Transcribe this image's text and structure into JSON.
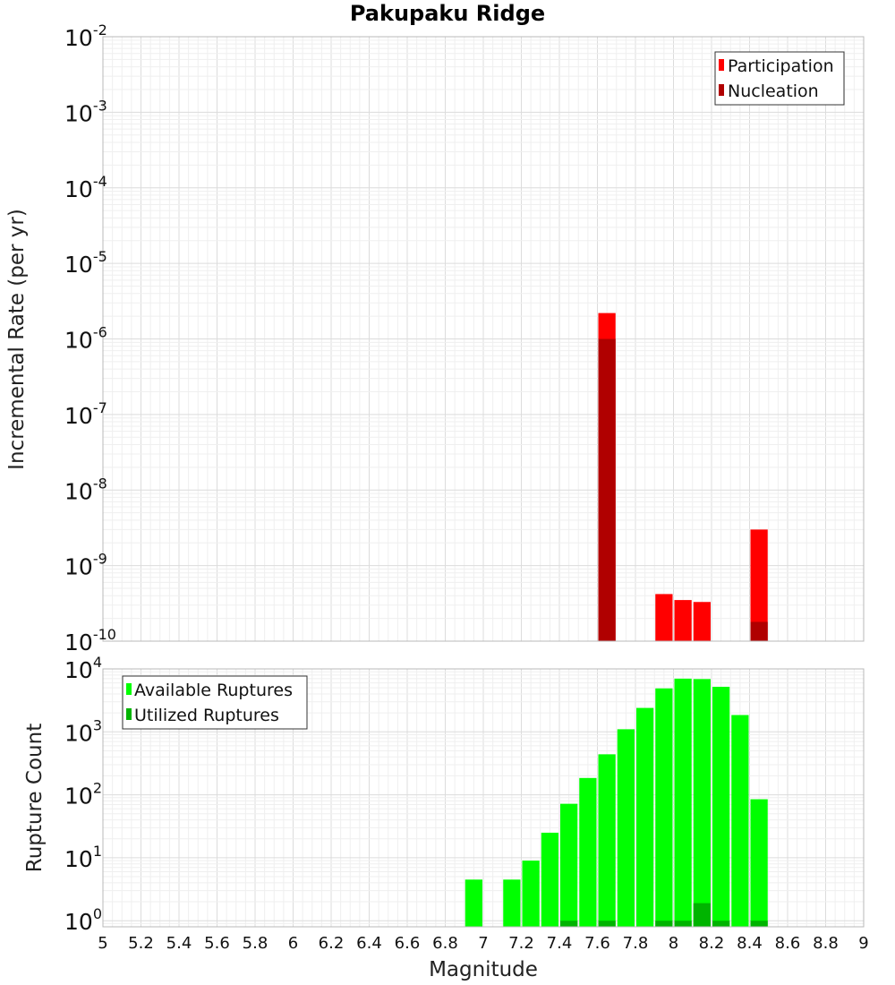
{
  "chart_data": [
    {
      "type": "bar",
      "title": "Pakupaku Ridge",
      "xlabel": "",
      "ylabel": "Incremental Rate (per yr)",
      "yscale": "log",
      "xlim": [
        5,
        9
      ],
      "ylim": [
        1e-10,
        0.01
      ],
      "y_tick_labels": [
        {
          "base": "10",
          "exp": "-2",
          "value": 0.01
        },
        {
          "base": "10",
          "exp": "-3",
          "value": 0.001
        },
        {
          "base": "10",
          "exp": "-4",
          "value": 0.0001
        },
        {
          "base": "10",
          "exp": "-5",
          "value": 1e-05
        },
        {
          "base": "10",
          "exp": "-6",
          "value": 1e-06
        },
        {
          "base": "10",
          "exp": "-7",
          "value": 1e-07
        },
        {
          "base": "10",
          "exp": "-8",
          "value": 1e-08
        },
        {
          "base": "10",
          "exp": "-9",
          "value": 1e-09
        },
        {
          "base": "10",
          "exp": "-10",
          "value": 1e-10
        }
      ],
      "bar_width": 0.1,
      "legend_position": "top-right",
      "series": [
        {
          "name": "Participation",
          "color": "#ff0000",
          "points": [
            {
              "x": 7.65,
              "y": 2.2e-06
            },
            {
              "x": 7.95,
              "y": 4.2e-10
            },
            {
              "x": 8.05,
              "y": 3.5e-10
            },
            {
              "x": 8.15,
              "y": 3.3e-10
            },
            {
              "x": 8.45,
              "y": 3e-09
            }
          ]
        },
        {
          "name": "Nucleation",
          "color": "#b00000",
          "points": [
            {
              "x": 7.65,
              "y": 1e-06
            },
            {
              "x": 8.45,
              "y": 1.8e-10
            }
          ]
        }
      ]
    },
    {
      "type": "bar",
      "title": "",
      "xlabel": "Magnitude",
      "ylabel": "Rupture Count",
      "yscale": "log",
      "xlim": [
        5,
        9
      ],
      "ylim": [
        0.8,
        10000
      ],
      "x_ticks": [
        "5",
        "5.2",
        "5.4",
        "5.6",
        "5.8",
        "6",
        "6.2",
        "6.4",
        "6.6",
        "6.8",
        "7",
        "7.2",
        "7.4",
        "7.6",
        "7.8",
        "8",
        "8.2",
        "8.4",
        "8.6",
        "8.8",
        "9"
      ],
      "y_tick_labels": [
        {
          "base": "10",
          "exp": "4",
          "value": 10000
        },
        {
          "base": "10",
          "exp": "3",
          "value": 1000
        },
        {
          "base": "10",
          "exp": "2",
          "value": 100
        },
        {
          "base": "10",
          "exp": "1",
          "value": 10
        },
        {
          "base": "10",
          "exp": "0",
          "value": 1
        }
      ],
      "bar_width": 0.1,
      "legend_position": "top-left",
      "series": [
        {
          "name": "Available Ruptures",
          "color": "#00ff00",
          "points": [
            {
              "x": 6.95,
              "y": 4.5
            },
            {
              "x": 7.15,
              "y": 4.5
            },
            {
              "x": 7.25,
              "y": 9
            },
            {
              "x": 7.35,
              "y": 25
            },
            {
              "x": 7.45,
              "y": 72
            },
            {
              "x": 7.55,
              "y": 185
            },
            {
              "x": 7.65,
              "y": 440
            },
            {
              "x": 7.75,
              "y": 1100
            },
            {
              "x": 7.85,
              "y": 2400
            },
            {
              "x": 7.95,
              "y": 4900
            },
            {
              "x": 8.05,
              "y": 7000
            },
            {
              "x": 8.15,
              "y": 6900
            },
            {
              "x": 8.25,
              "y": 5200
            },
            {
              "x": 8.35,
              "y": 1850
            },
            {
              "x": 8.45,
              "y": 85
            }
          ]
        },
        {
          "name": "Utilized Ruptures",
          "color": "#00b400",
          "points": [
            {
              "x": 7.45,
              "y": 1
            },
            {
              "x": 7.65,
              "y": 1
            },
            {
              "x": 7.95,
              "y": 1
            },
            {
              "x": 8.05,
              "y": 1
            },
            {
              "x": 8.15,
              "y": 1.9
            },
            {
              "x": 8.25,
              "y": 1
            },
            {
              "x": 8.45,
              "y": 1
            }
          ]
        }
      ]
    }
  ]
}
